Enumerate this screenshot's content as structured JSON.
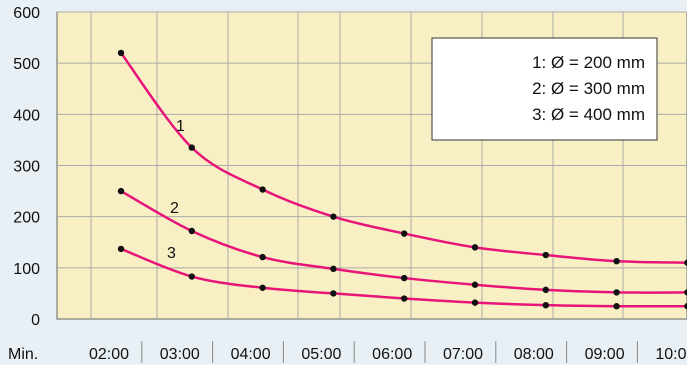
{
  "chart_data": {
    "type": "line",
    "title": "",
    "xlabel": "",
    "ylabel": "",
    "x_prefix": "Min.",
    "categories": [
      "02:00",
      "03:00",
      "04:00",
      "05:00",
      "06:00",
      "07:00",
      "08:00",
      "09:00",
      "10:00"
    ],
    "ylim": [
      0,
      600
    ],
    "yticks": [
      0,
      100,
      200,
      300,
      400,
      500,
      600
    ],
    "grid": true,
    "legend_placement": "top-right",
    "legend": [
      "1: Ø = 200 mm",
      "2: Ø = 300 mm",
      "3: Ø = 400 mm"
    ],
    "series": [
      {
        "name": "1",
        "values": [
          520,
          335,
          253,
          200,
          167,
          140,
          125,
          113,
          110
        ]
      },
      {
        "name": "2",
        "values": [
          250,
          172,
          121,
          98,
          80,
          67,
          57,
          52,
          52
        ]
      },
      {
        "name": "3",
        "values": [
          137,
          83,
          61,
          50,
          40,
          32,
          27,
          25,
          25
        ]
      }
    ],
    "colors": {
      "curve": "#e8147a",
      "point": "#111111",
      "plot_background": "#f8f0c4",
      "grid": "#aaaaaa"
    }
  }
}
